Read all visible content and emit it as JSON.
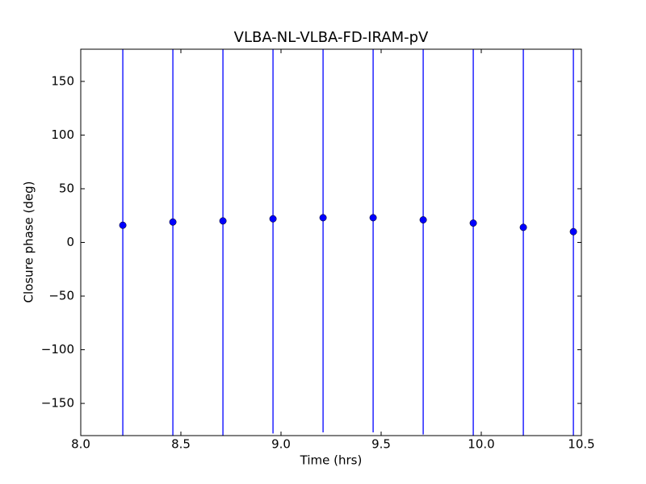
{
  "chart_data": {
    "type": "errorbar",
    "title": "VLBA-NL-VLBA-FD-IRAM-pV",
    "x_label": "Time (hrs)",
    "y_label": "Closure phase (deg)",
    "x": [
      8.21,
      8.46,
      8.71,
      8.96,
      9.21,
      9.46,
      9.71,
      9.96,
      10.21,
      10.46
    ],
    "series": [
      {
        "color": "#0000ff",
        "values": [
          16,
          19,
          20,
          22,
          23,
          23,
          21,
          18,
          14,
          10
        ],
        "errors": [
          200,
          200,
          200,
          200,
          200,
          200,
          200,
          200,
          200,
          200
        ]
      }
    ],
    "xlim": [
      8.0,
      10.5
    ],
    "xticks": [
      {
        "value": 8,
        "label": "8.0"
      },
      8.5,
      {
        "value": 9,
        "label": "9.0"
      },
      9.5,
      {
        "value": 10,
        "label": "10.0"
      },
      10.5
    ],
    "ylim": [
      -180,
      180
    ],
    "yticks": [
      {
        "value": -150,
        "label": "−150"
      },
      {
        "value": -100,
        "label": "−100"
      },
      {
        "value": -50,
        "label": "−50"
      },
      0,
      50,
      100,
      150
    ],
    "grid": false
  }
}
